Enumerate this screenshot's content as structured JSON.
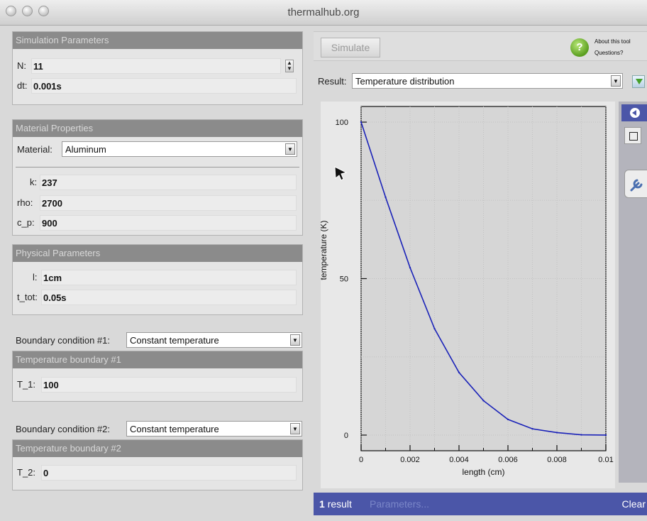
{
  "window": {
    "title": "thermalhub.org"
  },
  "simulation": {
    "header": "Simulation Parameters",
    "n_label": "N:",
    "n_value": "11",
    "dt_label": "dt:",
    "dt_value": "0.001s"
  },
  "material": {
    "header": "Material Properties",
    "material_label": "Material:",
    "material_value": "Aluminum",
    "k_label": "k:",
    "k_value": "237",
    "rho_label": "rho:",
    "rho_value": "2700",
    "cp_label": "c_p:",
    "cp_value": "900"
  },
  "physical": {
    "header": "Physical Parameters",
    "l_label": "l:",
    "l_value": "1cm",
    "ttot_label": "t_tot:",
    "ttot_value": "0.05s"
  },
  "boundary1": {
    "label": "Boundary condition #1:",
    "value": "Constant temperature",
    "header": "Temperature boundary #1",
    "t_label": "T_1:",
    "t_value": "100"
  },
  "boundary2": {
    "label": "Boundary condition #2:",
    "value": "Constant temperature",
    "header": "Temperature boundary #2",
    "t_label": "T_2:",
    "t_value": "0"
  },
  "toolbar": {
    "simulate_label": "Simulate",
    "about_label": "About this tool",
    "questions_label": "Questions?",
    "help_icon_glyph": "?"
  },
  "result": {
    "label": "Result:",
    "value": "Temperature distribution"
  },
  "status": {
    "count_num": "1",
    "count_word": "result",
    "parameters_label": "Parameters...",
    "clear_label": "Clear"
  },
  "colors": {
    "accent": "#4b56a8",
    "series": "#1a22b8",
    "header": "#8b8b8b"
  },
  "chart_data": {
    "type": "line",
    "xlabel": "length (cm)",
    "ylabel": "temperature (K)",
    "xlim": [
      0,
      0.01
    ],
    "ylim": [
      -5,
      105
    ],
    "xticks": [
      0,
      0.002,
      0.004,
      0.006,
      0.008,
      0.01
    ],
    "xtick_labels": [
      "0",
      "0.002",
      "0.004",
      "0.006",
      "0.008",
      "0.01"
    ],
    "yticks": [
      0,
      50,
      100
    ],
    "ytick_labels": [
      "0",
      "50",
      "100"
    ],
    "grid": true,
    "series": [
      {
        "x": [
          0,
          0.001,
          0.002,
          0.003,
          0.004,
          0.005,
          0.006,
          0.007,
          0.008,
          0.009,
          0.01
        ],
        "y": [
          100,
          76,
          53.5,
          34,
          20,
          11,
          5,
          2,
          0.8,
          0.1,
          0
        ]
      }
    ]
  }
}
